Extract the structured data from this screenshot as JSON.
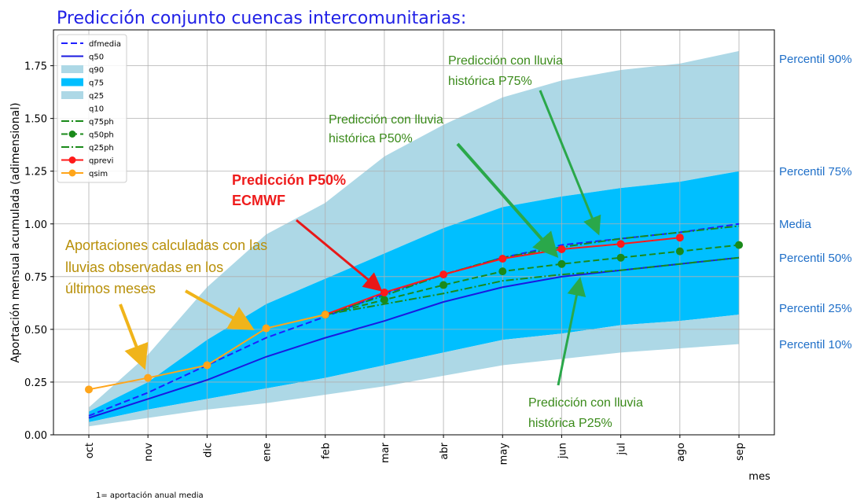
{
  "chart_data": {
    "type": "line",
    "title": "Predicción conjunto cuencas intercomunitarias:",
    "y_label": "Aportación mensual acumulada (adimensional)",
    "x_label": "mes",
    "footnote": "1= aportación anual media",
    "categories": [
      "oct",
      "nov",
      "dic",
      "ene",
      "feb",
      "mar",
      "abr",
      "may",
      "jun",
      "jul",
      "ago",
      "sep"
    ],
    "ylim": [
      0,
      1.92
    ],
    "yticks": [
      {
        "value": 0,
        "label": "0.00"
      },
      {
        "value": 0.25,
        "label": "0.25"
      },
      {
        "value": 0.5,
        "label": "0.50"
      },
      {
        "value": 0.75,
        "label": "0.75"
      },
      {
        "value": 1,
        "label": "1.00"
      },
      {
        "value": 1.25,
        "label": "1.25"
      },
      {
        "value": 1.5,
        "label": "1.50"
      },
      {
        "value": 1.75,
        "label": "1.75"
      }
    ],
    "grid": true,
    "legend": "upper left",
    "series": [
      {
        "name": "dfmedia",
        "color": "#1f1fff",
        "style": "line",
        "dash": "dashed",
        "marker": false,
        "values": [
          0.09,
          0.2,
          0.33,
          0.46,
          0.56,
          0.67,
          0.76,
          0.84,
          0.9,
          0.93,
          0.96,
          1.0
        ]
      },
      {
        "name": "q50",
        "color": "#1a1ae0",
        "style": "line",
        "dash": "solid",
        "marker": false,
        "values": [
          0.08,
          0.17,
          0.26,
          0.37,
          0.46,
          0.54,
          0.63,
          0.7,
          0.75,
          0.78,
          0.81,
          0.84
        ]
      },
      {
        "name": "q90",
        "color": "#add8e6",
        "style": "fill",
        "fill_to": "q75",
        "values": [
          0.13,
          0.38,
          0.7,
          0.95,
          1.1,
          1.32,
          1.47,
          1.6,
          1.68,
          1.73,
          1.76,
          1.82
        ]
      },
      {
        "name": "q75",
        "color": "#00bfff",
        "style": "fill",
        "fill_to": "q25",
        "values": [
          0.11,
          0.25,
          0.45,
          0.62,
          0.74,
          0.86,
          0.98,
          1.08,
          1.13,
          1.17,
          1.2,
          1.25
        ]
      },
      {
        "name": "q25",
        "color": "#add8e6",
        "style": "fill",
        "fill_to": "q10",
        "values": [
          0.06,
          0.12,
          0.17,
          0.22,
          0.27,
          0.33,
          0.39,
          0.45,
          0.48,
          0.52,
          0.54,
          0.57
        ]
      },
      {
        "name": "q10",
        "color": "#add8e6",
        "style": "none",
        "values": [
          0.04,
          0.08,
          0.12,
          0.15,
          0.19,
          0.23,
          0.28,
          0.33,
          0.36,
          0.39,
          0.41,
          0.43
        ]
      },
      {
        "name": "q75ph",
        "color": "#1a8a1a",
        "style": "line",
        "dash": "dashdot",
        "marker": false,
        "values": [
          null,
          null,
          null,
          null,
          0.57,
          0.66,
          0.76,
          0.84,
          0.89,
          0.93,
          0.96,
          0.99
        ]
      },
      {
        "name": "q50ph",
        "color": "#1a8a1a",
        "style": "line",
        "dash": "dashed",
        "marker": true,
        "values": [
          null,
          null,
          null,
          null,
          0.57,
          0.64,
          0.71,
          0.775,
          0.81,
          0.84,
          0.87,
          0.9
        ]
      },
      {
        "name": "q25ph",
        "color": "#1a8a1a",
        "style": "line",
        "dash": "dashdot",
        "marker": false,
        "values": [
          null,
          null,
          null,
          null,
          0.57,
          0.62,
          0.67,
          0.73,
          0.76,
          0.78,
          0.81,
          0.84
        ]
      },
      {
        "name": "qprevi",
        "color": "#ff1a1a",
        "style": "line",
        "dash": "solid",
        "marker": true,
        "values": [
          null,
          null,
          null,
          null,
          0.57,
          0.675,
          0.76,
          0.835,
          0.88,
          0.905,
          0.935,
          null
        ]
      },
      {
        "name": "qsim",
        "color": "#ffa51a",
        "style": "line",
        "dash": "solid",
        "marker": true,
        "values": [
          0.215,
          0.27,
          0.33,
          0.505,
          0.57,
          null,
          null,
          null,
          null,
          null,
          null,
          null
        ]
      }
    ],
    "right_labels": [
      "Percentil 90%",
      "Percentil 75%",
      "Media",
      "Percentil 50%",
      "Percentil 25%",
      "Percentil 10%"
    ],
    "annotations": [
      [
        "Predicción con lluvia",
        "histórica P75%"
      ],
      [
        "Predicción con lluvia",
        "histórica P50%"
      ],
      [
        "Predicción P50%",
        "ECMWF"
      ],
      [
        "Aportaciones calculadas con las",
        "lluvias observadas en los",
        "últimos meses"
      ],
      [
        "Predicción con lluvia",
        "histórica P25%"
      ]
    ]
  }
}
